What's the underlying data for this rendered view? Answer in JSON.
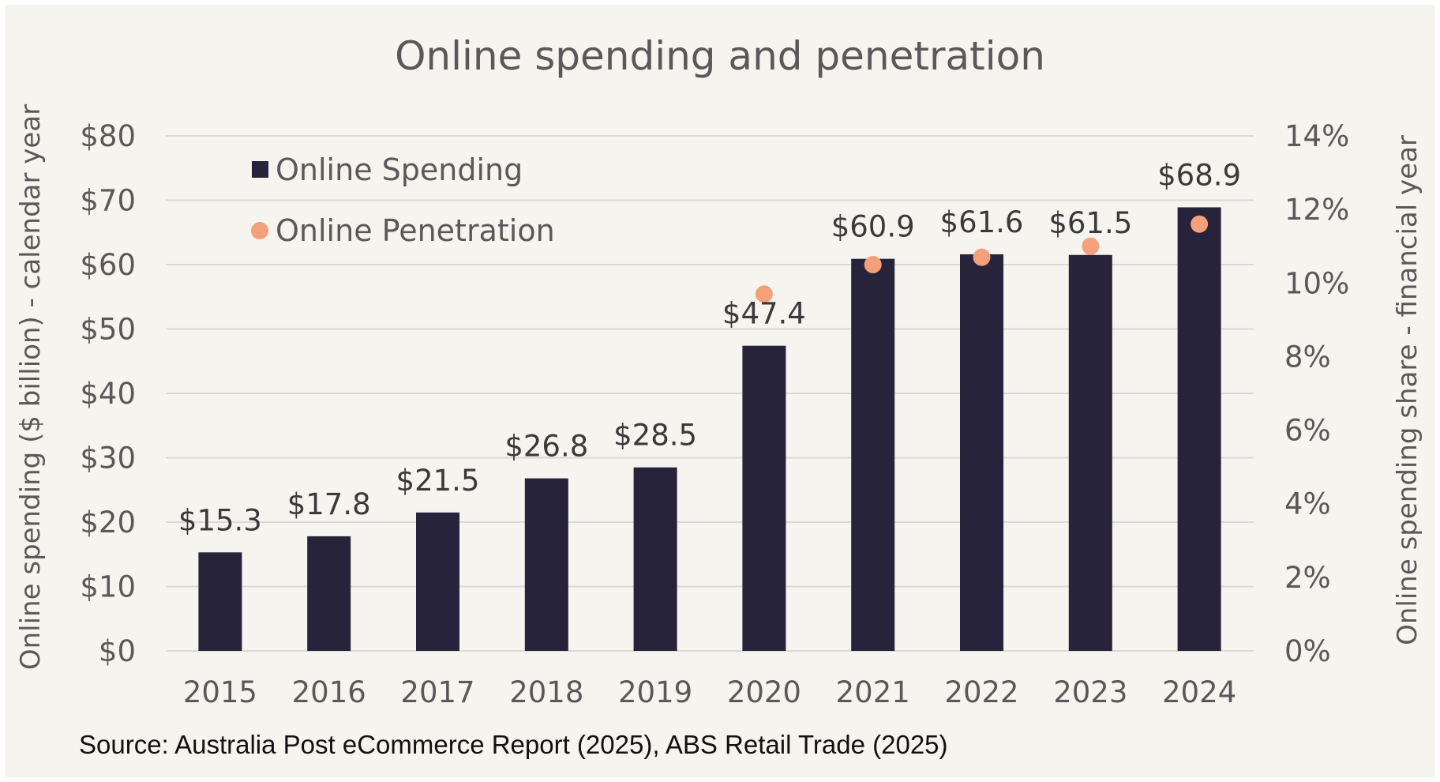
{
  "chart_data": {
    "type": "bar",
    "title": "Online spending and penetration",
    "categories": [
      "2015",
      "2016",
      "2017",
      "2018",
      "2019",
      "2020",
      "2021",
      "2022",
      "2023",
      "2024"
    ],
    "series": [
      {
        "name": "Online Spending",
        "kind": "bar",
        "axis": "left",
        "values": [
          15.3,
          17.8,
          21.5,
          26.8,
          28.5,
          47.4,
          60.9,
          61.6,
          61.5,
          68.9
        ],
        "labels": [
          "$15.3",
          "$17.8",
          "$21.5",
          "$26.8",
          "$28.5",
          "$47.4",
          "$60.9",
          "$61.6",
          "$61.5",
          "$68.9"
        ],
        "color": "#26233a"
      },
      {
        "name": "Online Penetration",
        "kind": "dot",
        "axis": "right",
        "values": [
          null,
          null,
          null,
          null,
          null,
          9.7,
          10.5,
          10.7,
          11.0,
          11.6
        ],
        "color": "#f4a07a"
      }
    ],
    "ylabel": "Online spending ($ billion) - calendar year",
    "y2label": "Online spending share - financial year",
    "ylim": [
      0,
      80
    ],
    "y2lim": [
      0,
      14
    ],
    "yticks": [
      "$0",
      "$10",
      "$20",
      "$30",
      "$40",
      "$50",
      "$60",
      "$70",
      "$80"
    ],
    "y2ticks": [
      "0%",
      "2%",
      "4%",
      "6%",
      "8%",
      "10%",
      "12%",
      "14%"
    ],
    "legend_position": "top-left",
    "grid": true
  },
  "source": "Source: Australia Post eCommerce Report (2025), ABS Retail Trade (2025)",
  "colors": {
    "background": "#f6f4ee",
    "grid": "#d9d9d9",
    "text": "#595959"
  }
}
